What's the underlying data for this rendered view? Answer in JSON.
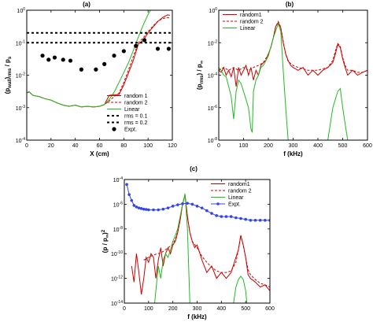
{
  "figure_labels": [
    "(a)",
    "(b)",
    "(c)"
  ],
  "chart_data": [
    {
      "type": "line",
      "panel": "(a)",
      "xlabel": "X (cm)",
      "ylabel": "(p_wall)_rms / p_s",
      "yscale": "log",
      "xlim": [
        0,
        120
      ],
      "ylim": [
        0.0001,
        1
      ],
      "xticks": [
        "0",
        "20",
        "40",
        "60",
        "80",
        "100",
        "120"
      ],
      "yticks": [
        "10^-4",
        "10^-3",
        "10^-2",
        "10^-1",
        "10^0"
      ],
      "legend_position": "bottom-right",
      "series": [
        {
          "name": "random 1",
          "color": "#cc0000",
          "style": "solid",
          "x": [
            0,
            2,
            5,
            10,
            15,
            20,
            25,
            30,
            35,
            40,
            45,
            50,
            55,
            60,
            64,
            68,
            72,
            76,
            80,
            84,
            88,
            92,
            96,
            100,
            104,
            108,
            112,
            116,
            118
          ],
          "y": [
            0.0029,
            0.0031,
            0.0024,
            0.0022,
            0.0019,
            0.0017,
            0.0014,
            0.0012,
            0.0011,
            0.0012,
            0.00105,
            0.0011,
            0.00105,
            0.0011,
            0.00125,
            0.0024,
            0.0025,
            0.0025,
            0.005,
            0.012,
            0.03,
            0.09,
            0.12,
            0.2,
            0.3,
            0.45,
            0.6,
            0.72,
            0.7
          ]
        },
        {
          "name": "random 2",
          "color": "#cc0000",
          "style": "dashed",
          "x": [
            0,
            2,
            5,
            10,
            15,
            20,
            25,
            30,
            35,
            40,
            45,
            50,
            55,
            60,
            64,
            68,
            72,
            76,
            80,
            84,
            88,
            92,
            96,
            100,
            104,
            108,
            112,
            116,
            118
          ],
          "y": [
            0.0029,
            0.003,
            0.0024,
            0.0022,
            0.0019,
            0.0017,
            0.0014,
            0.0012,
            0.0011,
            0.0012,
            0.00105,
            0.0011,
            0.00105,
            0.0011,
            0.00125,
            0.0016,
            0.0022,
            0.0028,
            0.006,
            0.015,
            0.04,
            0.1,
            0.14,
            0.22,
            0.32,
            0.46,
            0.55,
            0.6,
            0.58
          ]
        },
        {
          "name": "Linear",
          "color": "#22bb22",
          "style": "solid",
          "x": [
            0,
            2,
            5,
            10,
            15,
            20,
            25,
            30,
            35,
            40,
            45,
            50,
            55,
            60,
            64,
            68,
            72,
            76,
            80,
            84,
            88,
            92,
            96,
            100,
            102
          ],
          "y": [
            0.0029,
            0.0031,
            0.0024,
            0.0022,
            0.0019,
            0.0017,
            0.0014,
            0.0012,
            0.0011,
            0.0012,
            0.00105,
            0.0011,
            0.00105,
            0.0011,
            0.00125,
            0.0018,
            0.003,
            0.006,
            0.012,
            0.025,
            0.06,
            0.15,
            0.35,
            0.75,
            1.0
          ]
        },
        {
          "name": "rms = 0.1",
          "color": "#000000",
          "style": "dashed-thick",
          "x": [
            0,
            120
          ],
          "y": [
            0.1,
            0.1
          ]
        },
        {
          "name": "rms = 0.2",
          "color": "#000000",
          "style": "dashed-thick",
          "x": [
            0,
            120
          ],
          "y": [
            0.2,
            0.2
          ]
        },
        {
          "name": "Expt.",
          "color": "#000000",
          "style": "markers",
          "x": [
            13,
            18,
            23,
            30,
            36,
            45,
            57,
            64,
            72,
            80,
            90,
            97,
            108,
            117
          ],
          "y": [
            0.04,
            0.03,
            0.035,
            0.03,
            0.028,
            0.015,
            0.015,
            0.022,
            0.04,
            0.055,
            0.08,
            0.12,
            0.065,
            0.065
          ]
        }
      ]
    },
    {
      "type": "line",
      "panel": "(b)",
      "xlabel": "f (kHz)",
      "ylabel": "(p_rms) / p_∞",
      "yscale": "log",
      "xlim": [
        0,
        600
      ],
      "ylim": [
        1e-08,
        1
      ],
      "xticks": [
        "0",
        "100",
        "200",
        "300",
        "400",
        "500",
        "600"
      ],
      "yticks": [
        "10^-8",
        "10^-6",
        "10^-4",
        "10^-2",
        "10^0"
      ],
      "legend_position": "top-left",
      "series": [
        {
          "name": "random1",
          "color": "#cc0000",
          "style": "solid",
          "x": [
            0,
            10,
            20,
            30,
            40,
            50,
            60,
            70,
            80,
            90,
            100,
            110,
            120,
            130,
            140,
            150,
            160,
            170,
            180,
            190,
            200,
            210,
            220,
            230,
            240,
            250,
            260,
            270,
            280,
            290,
            300,
            320,
            340,
            360,
            380,
            400,
            420,
            440,
            460,
            470,
            480,
            490,
            500,
            510,
            520,
            540,
            560,
            580,
            600
          ],
          "y": [
            0.0002,
            0.00015,
            0.0003,
            0.0001,
            0.0002,
            8e-05,
            0.0003,
            2e-05,
            0.0003,
            0.0001,
            0.0002,
            0.0004,
            0.0001,
            0.0003,
            5e-05,
            0.0002,
            0.0001,
            0.0004,
            0.0006,
            0.0008,
            0.002,
            0.005,
            0.02,
            0.1,
            0.18,
            0.08,
            0.01,
            0.002,
            0.0008,
            0.0004,
            0.0003,
            0.0002,
            0.0003,
            0.0001,
            0.0002,
            0.0001,
            0.0002,
            0.0003,
            0.0006,
            0.002,
            0.008,
            0.005,
            0.001,
            0.0003,
            0.0001,
            0.0002,
            0.0001,
            0.00015,
            0.0002
          ]
        },
        {
          "name": "random 2",
          "color": "#cc0000",
          "style": "dashed",
          "x": [
            0,
            20,
            40,
            60,
            80,
            100,
            120,
            140,
            160,
            180,
            200,
            210,
            220,
            230,
            240,
            250,
            260,
            270,
            280,
            300,
            320,
            340,
            360,
            380,
            400,
            420,
            440,
            460,
            470,
            480,
            490,
            500,
            510,
            520,
            540,
            560,
            580,
            600
          ],
          "y": [
            0.0002,
            0.0003,
            0.0002,
            0.0003,
            0.0002,
            0.0003,
            0.0002,
            0.0003,
            0.0004,
            0.0006,
            0.002,
            0.005,
            0.02,
            0.1,
            0.2,
            0.09,
            0.012,
            0.002,
            0.0007,
            0.0004,
            0.0003,
            0.00025,
            0.0002,
            0.0002,
            0.0002,
            0.00025,
            0.0003,
            0.0008,
            0.003,
            0.009,
            0.006,
            0.0012,
            0.0004,
            0.0002,
            0.0002,
            0.00015,
            0.00015,
            0.0002
          ]
        },
        {
          "name": "Linear",
          "color": "#22bb22",
          "style": "solid",
          "x": [
            0,
            10,
            20,
            30,
            40,
            50,
            60,
            70,
            80,
            90,
            100,
            120,
            130,
            135,
            140,
            150,
            160,
            170,
            180,
            200,
            220,
            240,
            250,
            260,
            270,
            275,
            280,
            440,
            460,
            480,
            490,
            500,
            510,
            520
          ],
          "y": [
            0.0003,
            0.0002,
            0.0001,
            8e-05,
            2e-05,
            5e-06,
            2e-07,
            1e-05,
            5e-05,
            3e-05,
            1e-05,
            1e-06,
            5e-08,
            3e-08,
            1e-05,
            5e-05,
            0.0001,
            0.0003,
            0.0004,
            0.0015,
            0.02,
            0.15,
            0.05,
            0.0002,
            1e-06,
            1e-07,
            1e-08,
            1e-08,
            1e-06,
            1e-05,
            1.5e-05,
            1e-06,
            1e-07,
            1e-08
          ]
        }
      ]
    },
    {
      "type": "line",
      "panel": "(c)",
      "xlabel": "f (kHz)",
      "ylabel": "(p / p_∞)^2",
      "yscale": "log",
      "xlim": [
        0,
        600
      ],
      "ylim": [
        1e-14,
        0.0001
      ],
      "xticks": [
        "0",
        "100",
        "200",
        "300",
        "400",
        "500",
        "600"
      ],
      "yticks": [
        "10^-14",
        "10^-12",
        "10^-10",
        "10^-8",
        "10^-6",
        "10^-4"
      ],
      "legend_position": "top-right",
      "series": [
        {
          "name": "random1",
          "color": "#cc0000",
          "style": "solid",
          "x": [
            30,
            40,
            50,
            60,
            70,
            80,
            90,
            100,
            110,
            120,
            130,
            140,
            150,
            160,
            170,
            180,
            190,
            200,
            210,
            220,
            230,
            240,
            250,
            260,
            270,
            280,
            290,
            300,
            320,
            340,
            360,
            380,
            400,
            420,
            440,
            460,
            470,
            480,
            490,
            500,
            510,
            520,
            540,
            560,
            580,
            600
          ],
          "y": [
            1e-11,
            5e-13,
            1e-10,
            3e-12,
            5e-14,
            1e-12,
            5e-11,
            2e-11,
            1e-10,
            5e-11,
            1e-12,
            3e-11,
            3e-10,
            1e-11,
            1e-10,
            3e-10,
            1e-10,
            5e-10,
            1e-09,
            5e-09,
            5e-08,
            1e-06,
            6e-06,
            1e-07,
            5e-09,
            1e-09,
            3e-10,
            5e-10,
            3e-11,
            3e-12,
            1e-11,
            1e-12,
            3e-12,
            1e-12,
            3e-12,
            5e-11,
            2e-10,
            3e-09,
            5e-10,
            5e-11,
            2e-12,
            1e-12,
            5e-13,
            2e-13,
            3e-13,
            1e-13
          ]
        },
        {
          "name": "random 2",
          "color": "#cc0000",
          "style": "dashed",
          "x": [
            80,
            100,
            120,
            140,
            160,
            180,
            200,
            210,
            220,
            230,
            240,
            250,
            260,
            270,
            280,
            300,
            320,
            340,
            360,
            380,
            400,
            420,
            440,
            460,
            470,
            480,
            490,
            500,
            510,
            520,
            540,
            560,
            580,
            600
          ],
          "y": [
            3e-11,
            5e-11,
            8e-11,
            1e-10,
            1.5e-10,
            3e-10,
            6e-10,
            1.5e-09,
            6e-09,
            6e-08,
            1e-06,
            5e-06,
            1e-07,
            5e-09,
            1e-09,
            3e-10,
            6e-11,
            2e-11,
            8e-12,
            4e-12,
            3e-12,
            3e-12,
            4e-12,
            2e-11,
            2e-10,
            3e-09,
            5e-10,
            5e-11,
            5e-12,
            2e-12,
            8e-13,
            4e-13,
            3e-13,
            2e-13
          ]
        },
        {
          "name": "Linear",
          "color": "#22bb22",
          "style": "solid",
          "x": [
            125,
            130,
            140,
            150,
            160,
            170,
            180,
            190,
            200,
            210,
            220,
            230,
            240,
            250,
            260,
            265,
            270,
            450,
            460,
            470,
            480,
            490,
            500,
            505
          ],
          "y": [
            1e-14,
            1e-13,
            1e-11,
            1e-12,
            3e-11,
            1e-10,
            5e-11,
            2e-10,
            1e-09,
            3e-09,
            1e-08,
            1e-07,
            1e-06,
            7e-06,
            1e-08,
            1e-11,
            1e-14,
            1e-14,
            2e-13,
            8e-13,
            1.5e-12,
            8e-13,
            1e-13,
            1e-14
          ]
        },
        {
          "name": "Expt.",
          "color": "#3344ee",
          "style": "line-markers",
          "x": [
            10,
            20,
            30,
            40,
            50,
            60,
            70,
            80,
            90,
            100,
            120,
            140,
            160,
            180,
            200,
            220,
            240,
            260,
            280,
            300,
            320,
            340,
            360,
            380,
            400,
            420,
            440,
            460,
            480,
            500,
            520,
            540,
            560,
            580,
            600
          ],
          "y": [
            4e-05,
            6e-06,
            2e-06,
            8e-07,
            6e-07,
            5e-07,
            4.5e-07,
            4e-07,
            3.8e-07,
            3.5e-07,
            3.5e-07,
            3.5e-07,
            4e-07,
            5e-07,
            7e-07,
            9e-07,
            1.1e-06,
            1.2e-06,
            1e-06,
            7e-07,
            5e-07,
            3e-07,
            1.8e-07,
            1.2e-07,
            1e-07,
            1e-07,
            1e-07,
            8e-08,
            7e-08,
            6e-08,
            5e-08,
            5e-08,
            5e-08,
            5e-08,
            5e-08
          ]
        }
      ]
    }
  ]
}
